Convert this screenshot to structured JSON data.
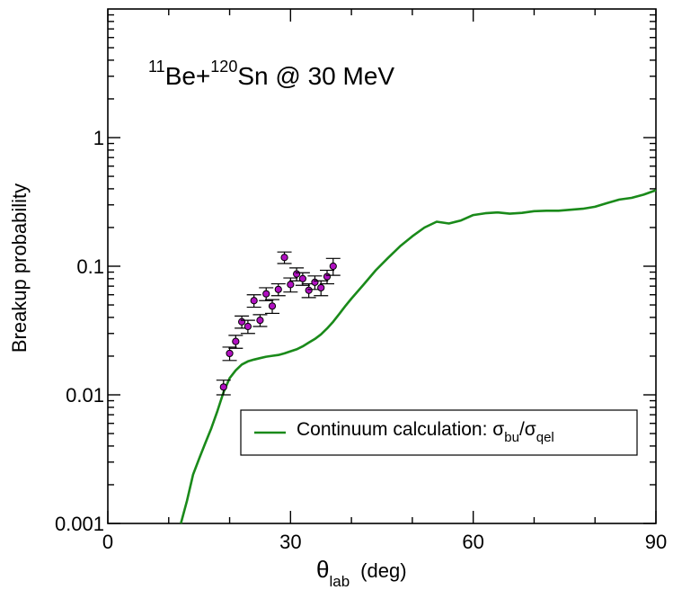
{
  "chart_data": {
    "type": "scatter",
    "annotation": {
      "pre_sup": "11",
      "part1": "Be+",
      "sup2": "120",
      "part2": "Sn @ 30 MeV"
    },
    "xlabel": {
      "theta": "θ",
      "sub": "lab",
      "unit": "(deg)"
    },
    "ylabel": "Breakup probability",
    "xlim": [
      0,
      90
    ],
    "ylim": [
      0.001,
      10
    ],
    "yscale": "log",
    "x_ticks": [
      {
        "value": 0,
        "label": "0"
      },
      {
        "value": 30,
        "label": "30"
      },
      {
        "value": 60,
        "label": "60"
      },
      {
        "value": 90,
        "label": "90"
      }
    ],
    "y_ticks": [
      {
        "value": 0.001,
        "label": "0.001"
      },
      {
        "value": 0.01,
        "label": "0.01"
      },
      {
        "value": 0.1,
        "label": "0.1"
      },
      {
        "value": 1,
        "label": "1"
      }
    ],
    "legend": {
      "placement": "lower-right",
      "text": "Continuum calculation: σ",
      "sub1": "bu",
      "slash": "/σ",
      "sub2": "qel"
    },
    "series": [
      {
        "kind": "line",
        "color": "#1a8a1a",
        "x": [
          12,
          13,
          14,
          15,
          16,
          17,
          18,
          19,
          20,
          21,
          22,
          23,
          24,
          25,
          26,
          27,
          28,
          29,
          30,
          31,
          32,
          33,
          34,
          35,
          36,
          37,
          38,
          39,
          40,
          42,
          44,
          46,
          48,
          50,
          52,
          54,
          56,
          58,
          60,
          62,
          64,
          66,
          68,
          70,
          72,
          74,
          76,
          78,
          80,
          82,
          84,
          86,
          88,
          90
        ],
        "y": [
          0.001,
          0.0015,
          0.0024,
          0.0032,
          0.0042,
          0.0055,
          0.0075,
          0.0105,
          0.0135,
          0.0155,
          0.0172,
          0.0182,
          0.0188,
          0.0193,
          0.0198,
          0.0201,
          0.0204,
          0.021,
          0.0218,
          0.0226,
          0.0238,
          0.0255,
          0.0272,
          0.0295,
          0.0328,
          0.037,
          0.0425,
          0.049,
          0.056,
          0.072,
          0.093,
          0.116,
          0.143,
          0.171,
          0.2,
          0.222,
          0.215,
          0.227,
          0.25,
          0.258,
          0.262,
          0.256,
          0.26,
          0.268,
          0.27,
          0.27,
          0.275,
          0.28,
          0.29,
          0.31,
          0.33,
          0.34,
          0.36,
          0.39
        ]
      },
      {
        "kind": "points",
        "color": "#b010c0",
        "x": [
          19,
          20,
          21,
          22,
          23,
          24,
          25,
          26,
          27,
          28,
          29,
          30,
          31,
          32,
          33,
          34,
          35,
          36,
          37
        ],
        "y": [
          0.0115,
          0.021,
          0.026,
          0.037,
          0.034,
          0.054,
          0.038,
          0.061,
          0.049,
          0.066,
          0.117,
          0.072,
          0.087,
          0.08,
          0.065,
          0.075,
          0.068,
          0.083,
          0.1
        ],
        "err": [
          0.0015,
          0.0025,
          0.003,
          0.004,
          0.004,
          0.006,
          0.004,
          0.007,
          0.006,
          0.007,
          0.012,
          0.009,
          0.01,
          0.009,
          0.008,
          0.009,
          0.009,
          0.01,
          0.015
        ]
      }
    ]
  }
}
